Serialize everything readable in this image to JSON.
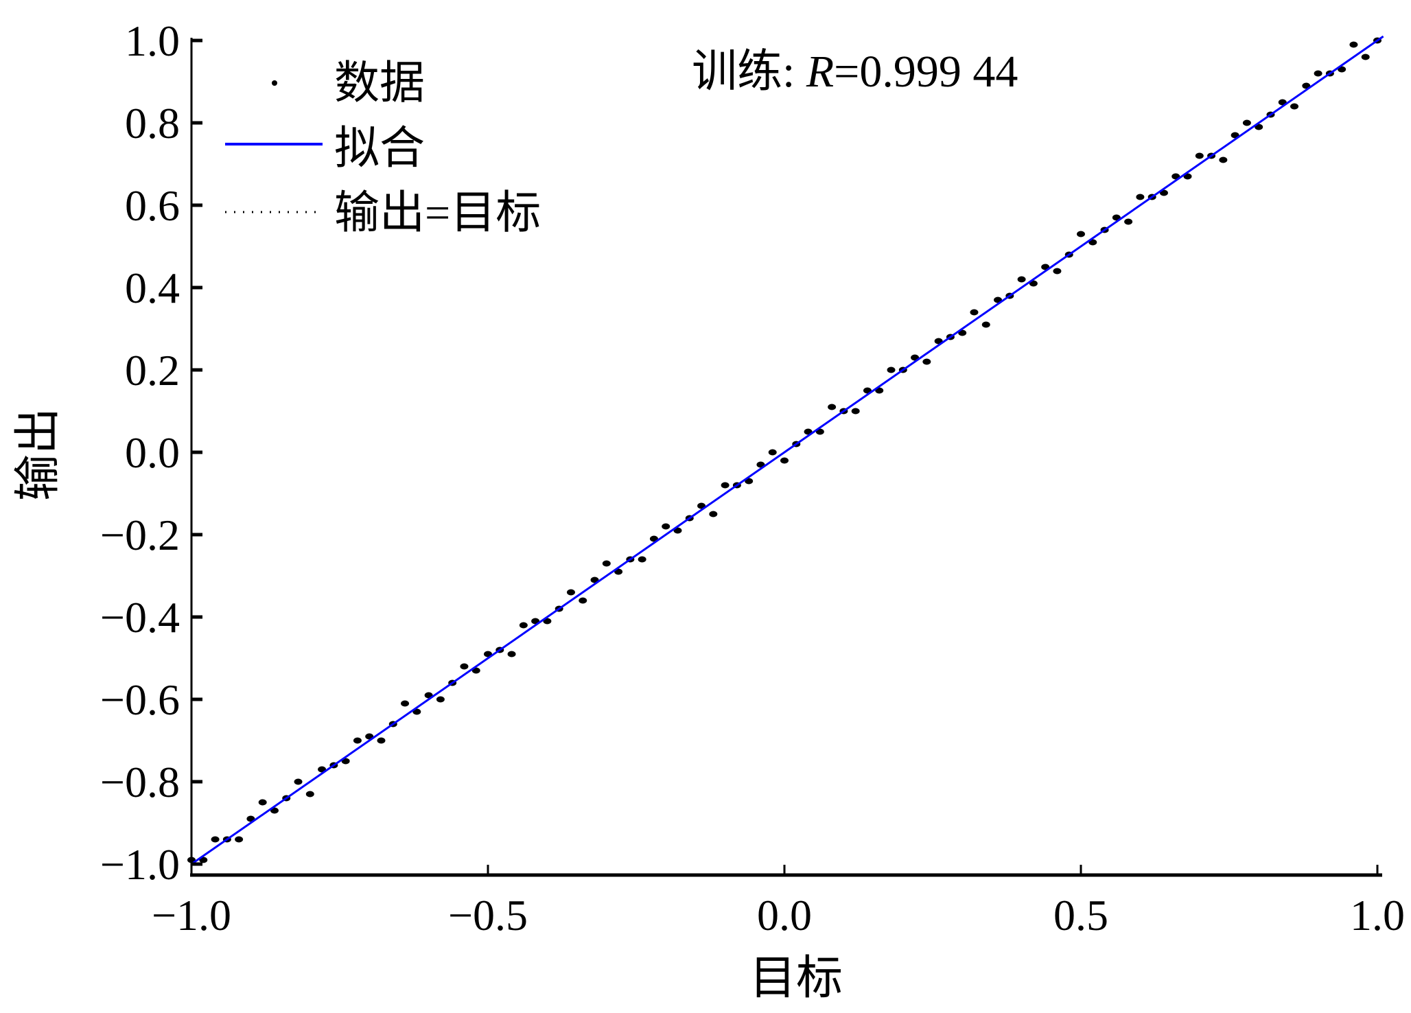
{
  "chart_data": {
    "type": "scatter",
    "title": "",
    "annotation": {
      "prefix": "训练: ",
      "var": "R",
      "value": "=0.999 44"
    },
    "xlabel": "目标",
    "ylabel": "输出",
    "xlim": [
      -1.0,
      1.01
    ],
    "ylim": [
      -1.03,
      1.0
    ],
    "xticks": [
      -1.0,
      -0.5,
      0.0,
      0.5,
      1.0
    ],
    "xtick_labels": [
      "−1.0",
      "−0.5",
      "0.0",
      "0.5",
      "1.0"
    ],
    "yticks": [
      1.0,
      0.8,
      0.6,
      0.4,
      0.2,
      0.0,
      -0.2,
      -0.4,
      -0.6,
      -0.8,
      -1.0
    ],
    "ytick_labels": [
      "1.0",
      "0.8",
      "0.6",
      "0.4",
      "0.2",
      "0.0",
      "−0.2",
      "−0.4",
      "−0.6",
      "−0.8",
      "−1.0"
    ],
    "grid": false,
    "legend_position": "top-left",
    "legend": [
      "数据",
      "拟合",
      "输出=目标"
    ],
    "colors": {
      "data": "#000000",
      "fit": "#0000ff",
      "identity": "#000000"
    },
    "fit": {
      "slope": 1.0,
      "intercept": 0.0
    },
    "points": [
      [
        -1.0,
        -0.99
      ],
      [
        -0.98,
        -0.99
      ],
      [
        -0.96,
        -0.94
      ],
      [
        -0.94,
        -0.94
      ],
      [
        -0.92,
        -0.94
      ],
      [
        -0.9,
        -0.89
      ],
      [
        -0.88,
        -0.85
      ],
      [
        -0.86,
        -0.87
      ],
      [
        -0.84,
        -0.84
      ],
      [
        -0.82,
        -0.8
      ],
      [
        -0.8,
        -0.83
      ],
      [
        -0.78,
        -0.77
      ],
      [
        -0.76,
        -0.76
      ],
      [
        -0.74,
        -0.75
      ],
      [
        -0.72,
        -0.7
      ],
      [
        -0.7,
        -0.69
      ],
      [
        -0.68,
        -0.7
      ],
      [
        -0.66,
        -0.66
      ],
      [
        -0.64,
        -0.61
      ],
      [
        -0.62,
        -0.63
      ],
      [
        -0.6,
        -0.59
      ],
      [
        -0.58,
        -0.6
      ],
      [
        -0.56,
        -0.56
      ],
      [
        -0.54,
        -0.52
      ],
      [
        -0.52,
        -0.53
      ],
      [
        -0.5,
        -0.49
      ],
      [
        -0.48,
        -0.48
      ],
      [
        -0.46,
        -0.49
      ],
      [
        -0.44,
        -0.42
      ],
      [
        -0.42,
        -0.41
      ],
      [
        -0.4,
        -0.41
      ],
      [
        -0.38,
        -0.38
      ],
      [
        -0.36,
        -0.34
      ],
      [
        -0.34,
        -0.36
      ],
      [
        -0.32,
        -0.31
      ],
      [
        -0.3,
        -0.27
      ],
      [
        -0.28,
        -0.29
      ],
      [
        -0.26,
        -0.26
      ],
      [
        -0.24,
        -0.26
      ],
      [
        -0.22,
        -0.21
      ],
      [
        -0.2,
        -0.18
      ],
      [
        -0.18,
        -0.19
      ],
      [
        -0.16,
        -0.16
      ],
      [
        -0.14,
        -0.13
      ],
      [
        -0.12,
        -0.15
      ],
      [
        -0.1,
        -0.08
      ],
      [
        -0.08,
        -0.08
      ],
      [
        -0.06,
        -0.07
      ],
      [
        -0.04,
        -0.03
      ],
      [
        -0.02,
        0.0
      ],
      [
        0.0,
        -0.02
      ],
      [
        0.02,
        0.02
      ],
      [
        0.04,
        0.05
      ],
      [
        0.06,
        0.05
      ],
      [
        0.08,
        0.11
      ],
      [
        0.1,
        0.1
      ],
      [
        0.12,
        0.1
      ],
      [
        0.14,
        0.15
      ],
      [
        0.16,
        0.15
      ],
      [
        0.18,
        0.2
      ],
      [
        0.2,
        0.2
      ],
      [
        0.22,
        0.23
      ],
      [
        0.24,
        0.22
      ],
      [
        0.26,
        0.27
      ],
      [
        0.28,
        0.28
      ],
      [
        0.3,
        0.29
      ],
      [
        0.32,
        0.34
      ],
      [
        0.34,
        0.31
      ],
      [
        0.36,
        0.37
      ],
      [
        0.38,
        0.38
      ],
      [
        0.4,
        0.42
      ],
      [
        0.42,
        0.41
      ],
      [
        0.44,
        0.45
      ],
      [
        0.46,
        0.44
      ],
      [
        0.48,
        0.48
      ],
      [
        0.5,
        0.53
      ],
      [
        0.52,
        0.51
      ],
      [
        0.54,
        0.54
      ],
      [
        0.56,
        0.57
      ],
      [
        0.58,
        0.56
      ],
      [
        0.6,
        0.62
      ],
      [
        0.62,
        0.62
      ],
      [
        0.64,
        0.63
      ],
      [
        0.66,
        0.67
      ],
      [
        0.68,
        0.67
      ],
      [
        0.7,
        0.72
      ],
      [
        0.72,
        0.72
      ],
      [
        0.74,
        0.71
      ],
      [
        0.76,
        0.77
      ],
      [
        0.78,
        0.8
      ],
      [
        0.8,
        0.79
      ],
      [
        0.82,
        0.82
      ],
      [
        0.84,
        0.85
      ],
      [
        0.86,
        0.84
      ],
      [
        0.88,
        0.89
      ],
      [
        0.9,
        0.92
      ],
      [
        0.92,
        0.92
      ],
      [
        0.94,
        0.93
      ],
      [
        0.96,
        0.99
      ],
      [
        0.98,
        0.96
      ],
      [
        1.0,
        1.0
      ]
    ]
  }
}
